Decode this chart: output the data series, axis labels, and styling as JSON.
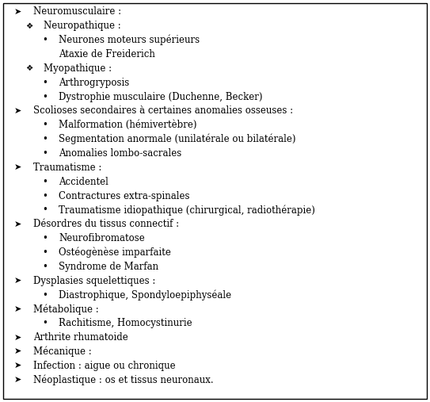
{
  "background_color": "#ffffff",
  "border_color": "#000000",
  "text_color": "#000000",
  "font_size": 8.5,
  "lines": [
    {
      "indent": 0,
      "bullet": "➤",
      "text": "Neuromusculaire :"
    },
    {
      "indent": 1,
      "bullet": "❖",
      "text": "Neuropathique :"
    },
    {
      "indent": 2,
      "bullet": "•",
      "text": "Neurones moteurs supérieurs"
    },
    {
      "indent": 2,
      "bullet": "",
      "text": "Ataxie de Freiderich"
    },
    {
      "indent": 1,
      "bullet": "❖",
      "text": "Myopathique :"
    },
    {
      "indent": 2,
      "bullet": "•",
      "text": "Arthrogryposis"
    },
    {
      "indent": 2,
      "bullet": "•",
      "text": "Dystrophie musculaire (Duchenne, Becker)"
    },
    {
      "indent": 0,
      "bullet": "➤",
      "text": "Scolioses secondaires à certaines anomalies osseuses :"
    },
    {
      "indent": 2,
      "bullet": "•",
      "text": "Malformation (hémivertèbre)"
    },
    {
      "indent": 2,
      "bullet": "•",
      "text": "Segmentation anormale (unilatérale ou bilatérale)"
    },
    {
      "indent": 2,
      "bullet": "•",
      "text": "Anomalies lombo-sacrales"
    },
    {
      "indent": 0,
      "bullet": "➤",
      "text": "Traumatisme :"
    },
    {
      "indent": 2,
      "bullet": "•",
      "text": "Accidentel"
    },
    {
      "indent": 2,
      "bullet": "•",
      "text": "Contractures extra-spinales"
    },
    {
      "indent": 2,
      "bullet": "•",
      "text": "Traumatisme idiopathique (chirurgical, radiothérapie)"
    },
    {
      "indent": 0,
      "bullet": "➤",
      "text": "Désordres du tissus connectif :"
    },
    {
      "indent": 2,
      "bullet": "•",
      "text": "Neurofibromatose"
    },
    {
      "indent": 2,
      "bullet": "•",
      "text": "Ostéogènèse imparfaite"
    },
    {
      "indent": 2,
      "bullet": "•",
      "text": "Syndrome de Marfan"
    },
    {
      "indent": 0,
      "bullet": "➤",
      "text": "Dysplasies squelettiques :"
    },
    {
      "indent": 2,
      "bullet": "•",
      "text": "Diastrophique, Spondyloepiphyséale"
    },
    {
      "indent": 0,
      "bullet": "➤",
      "text": "Métabolique :"
    },
    {
      "indent": 2,
      "bullet": "•",
      "text": "Rachitisme, Homocystinurie"
    },
    {
      "indent": 0,
      "bullet": "➤",
      "text": "Arthrite rhumatoide"
    },
    {
      "indent": 0,
      "bullet": "➤",
      "text": "Mécanique :"
    },
    {
      "indent": 0,
      "bullet": "➤",
      "text": "Infection : aigue ou chronique"
    },
    {
      "indent": 0,
      "bullet": "➤",
      "text": "Néoplastique : os et tissus neuronaux."
    }
  ]
}
